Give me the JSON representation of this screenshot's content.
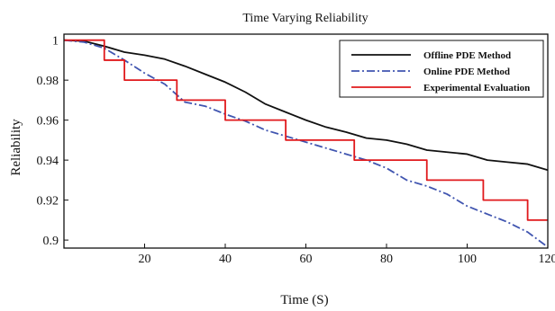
{
  "chart_data": {
    "type": "line",
    "title": "Time Varying Reliability",
    "xlabel": "Time (S)",
    "ylabel": "Reliability",
    "xlim": [
      0,
      120
    ],
    "ylim": [
      0.896,
      1.003
    ],
    "xticks": [
      20,
      40,
      60,
      80,
      100,
      120
    ],
    "yticks": [
      0.9,
      0.92,
      0.94,
      0.96,
      0.98,
      1
    ],
    "ytick_labels": [
      "0.9",
      "0.92",
      "0.94",
      "0.96",
      "0.98",
      "1"
    ],
    "grid": false,
    "legend_position": "top-right",
    "series": [
      {
        "name": "Offline PDE Method",
        "color": "#111111",
        "style": "solid",
        "x": [
          0,
          5,
          10,
          15,
          20,
          25,
          30,
          35,
          40,
          45,
          50,
          55,
          60,
          65,
          70,
          75,
          80,
          85,
          90,
          95,
          100,
          105,
          110,
          115,
          120
        ],
        "y": [
          1.0,
          0.9995,
          0.997,
          0.994,
          0.9925,
          0.9905,
          0.987,
          0.983,
          0.979,
          0.974,
          0.968,
          0.964,
          0.96,
          0.9565,
          0.954,
          0.951,
          0.95,
          0.948,
          0.945,
          0.944,
          0.943,
          0.94,
          0.939,
          0.938,
          0.935
        ]
      },
      {
        "name": "Online PDE Method",
        "color": "#4055b0",
        "style": "dashdot",
        "x": [
          0,
          5,
          10,
          15,
          20,
          25,
          30,
          35,
          40,
          45,
          50,
          55,
          60,
          65,
          70,
          75,
          80,
          85,
          90,
          95,
          100,
          105,
          110,
          115,
          120
        ],
        "y": [
          1.0,
          0.999,
          0.996,
          0.99,
          0.9835,
          0.978,
          0.969,
          0.967,
          0.963,
          0.9595,
          0.955,
          0.952,
          0.949,
          0.946,
          0.943,
          0.94,
          0.936,
          0.93,
          0.927,
          0.923,
          0.917,
          0.913,
          0.909,
          0.904,
          0.8965
        ]
      },
      {
        "name": "Experimental Evaluation",
        "color": "#e0191c",
        "style": "step",
        "steps": [
          {
            "x": 0,
            "y": 1.0
          },
          {
            "x": 10,
            "y": 0.99
          },
          {
            "x": 15,
            "y": 0.98
          },
          {
            "x": 28,
            "y": 0.97
          },
          {
            "x": 40,
            "y": 0.96
          },
          {
            "x": 55,
            "y": 0.95
          },
          {
            "x": 72,
            "y": 0.94
          },
          {
            "x": 90,
            "y": 0.93
          },
          {
            "x": 104,
            "y": 0.92
          },
          {
            "x": 115,
            "y": 0.91
          },
          {
            "x": 120,
            "y": 0.91
          }
        ]
      }
    ]
  }
}
